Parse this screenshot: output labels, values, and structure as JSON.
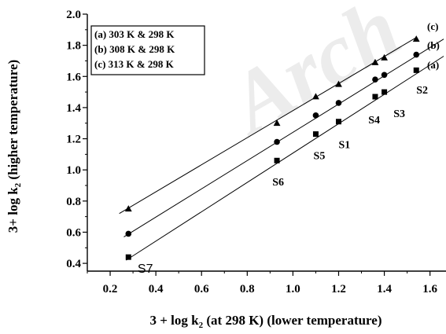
{
  "watermark_text": "Arch",
  "chart_data": {
    "type": "scatter",
    "xlabel_main": "3 + log k",
    "xlabel_sub": "2",
    "xlabel_rest": " (at 298 K) (lower temperature)",
    "ylabel_main": "3+ log k",
    "ylabel_sub": "2",
    "ylabel_rest": " (higher temperature)",
    "xlim": [
      0.1,
      1.67
    ],
    "ylim": [
      0.35,
      2.0
    ],
    "x_ticks": [
      "0.2",
      "0.4",
      "0.6",
      "0.8",
      "1.0",
      "1.2",
      "1.4",
      "1.6"
    ],
    "y_ticks": [
      "0.4",
      "0.6",
      "0.8",
      "1.0",
      "1.2",
      "1.4",
      "1.6",
      "1.8",
      "2.0"
    ],
    "legend": [
      "(a) 303 K & 298 K",
      "(b) 308 K & 298 K",
      "(c) 313 K & 298 K"
    ],
    "series": [
      {
        "tag": "(a)",
        "marker": "square",
        "x": [
          0.28,
          0.93,
          1.1,
          1.2,
          1.36,
          1.4,
          1.54
        ],
        "y": [
          0.44,
          1.06,
          1.23,
          1.31,
          1.47,
          1.5,
          1.64
        ],
        "fit": [
          [
            0.27,
            0.42
          ],
          [
            1.66,
            1.73
          ]
        ]
      },
      {
        "tag": "(b)",
        "marker": "circle",
        "x": [
          0.28,
          0.93,
          1.1,
          1.2,
          1.36,
          1.4,
          1.54
        ],
        "y": [
          0.59,
          1.18,
          1.35,
          1.43,
          1.58,
          1.61,
          1.74
        ],
        "fit": [
          [
            0.26,
            0.57
          ],
          [
            1.66,
            1.84
          ]
        ]
      },
      {
        "tag": "(c)",
        "marker": "triangle",
        "x": [
          0.28,
          0.93,
          1.1,
          1.2,
          1.36,
          1.4,
          1.54
        ],
        "y": [
          0.75,
          1.3,
          1.47,
          1.55,
          1.69,
          1.72,
          1.84
        ],
        "fit": [
          [
            0.24,
            0.72
          ],
          [
            1.54,
            1.85
          ]
        ]
      }
    ],
    "point_labels": [
      {
        "text": "S7",
        "x": 0.32,
        "y": 0.41
      },
      {
        "text": "S6",
        "x": 0.91,
        "y": 0.97
      },
      {
        "text": "S5",
        "x": 1.09,
        "y": 1.14
      },
      {
        "text": "S1",
        "x": 1.2,
        "y": 1.21
      },
      {
        "text": "S4",
        "x": 1.33,
        "y": 1.37
      },
      {
        "text": "S3",
        "x": 1.44,
        "y": 1.41
      },
      {
        "text": "S2",
        "x": 1.54,
        "y": 1.56
      }
    ]
  }
}
